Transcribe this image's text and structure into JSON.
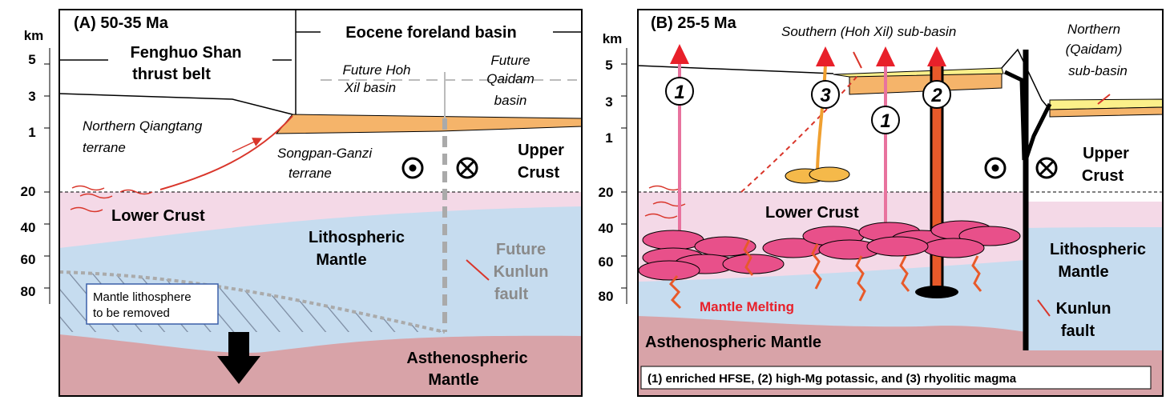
{
  "panels": [
    {
      "title": "(A) 50-35 Ma",
      "depth_unit": "km",
      "depth_labels": [
        5,
        3,
        1,
        20,
        40,
        60,
        80
      ],
      "header": "Eocene foreland basin",
      "thrust_belt": [
        "Fenghuo Shan",
        "thrust belt"
      ],
      "future_hoh_xil": [
        "Future Hoh",
        "Xil basin"
      ],
      "future_qaidam": [
        "Future",
        "Qaidam",
        "basin"
      ],
      "qiangtang": [
        "Northern Qiangtang",
        "terrane"
      ],
      "songpan": [
        "Songpan-Ganzi",
        "terrane"
      ],
      "upper_crust": [
        "Upper",
        "Crust"
      ],
      "lower_crust": "Lower Crust",
      "lith_mantle": [
        "Lithospheric",
        "Mantle"
      ],
      "future_fault": [
        "Future",
        "Kunlun",
        "fault"
      ],
      "removal_note": [
        "Mantle lithosphere",
        "to be removed"
      ],
      "astheno": [
        "Asthenospheric",
        "Mantle"
      ]
    },
    {
      "title": "(B) 25-5 Ma",
      "depth_unit": "km",
      "depth_labels": [
        5,
        3,
        1,
        20,
        40,
        60,
        80
      ],
      "southern_basin": "Southern (Hoh Xil) sub-basin",
      "northern_basin": [
        "Northern",
        "(Qaidam)",
        "sub-basin"
      ],
      "magma_markers": [
        "1",
        "3",
        "1",
        "2"
      ],
      "upper_crust": [
        "Upper",
        "Crust"
      ],
      "lower_crust": "Lower Crust",
      "lith_mantle": [
        "Lithospheric",
        "Mantle"
      ],
      "fault": [
        "Kunlun",
        "fault"
      ],
      "melting": "Mantle Melting",
      "astheno": "Asthenospheric Mantle",
      "legend": "(1) enriched HFSE, (2) high-Mg potassic, and (3) rhyolitic magma"
    }
  ]
}
